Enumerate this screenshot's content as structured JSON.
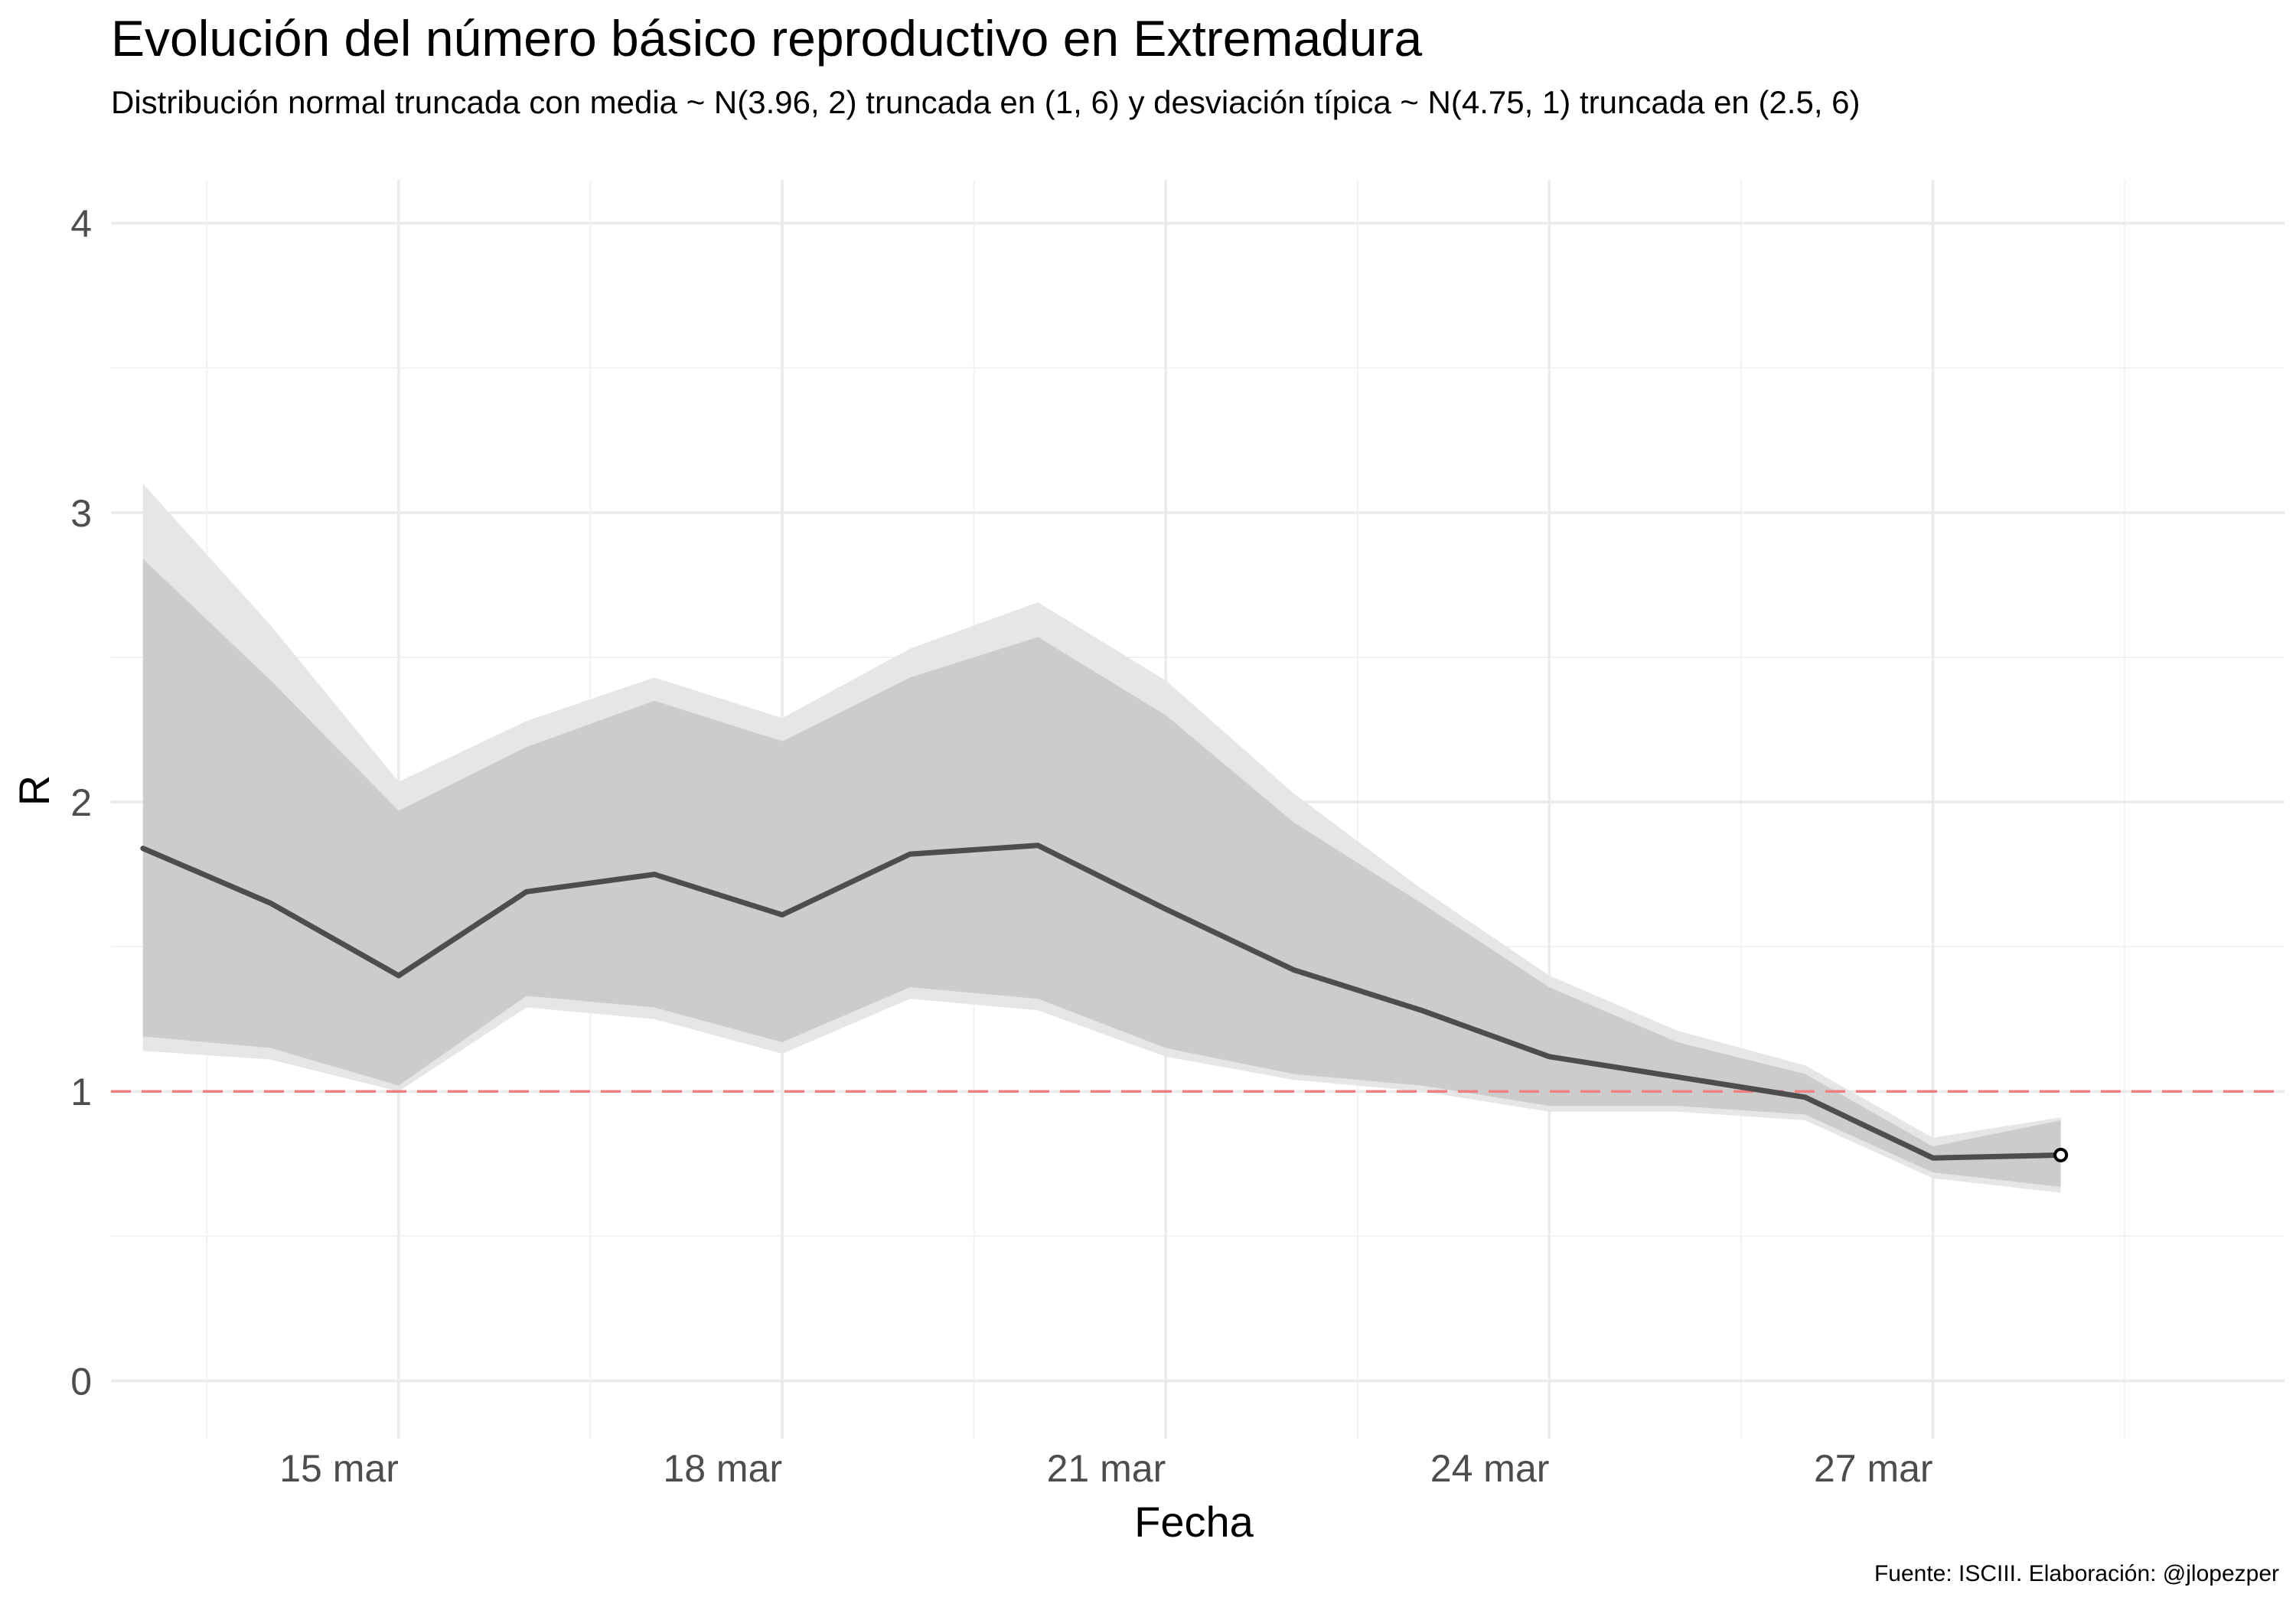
{
  "chart_data": {
    "type": "line",
    "title": "Evolución del número básico reproductivo en Extremadura",
    "subtitle": "Distribución normal truncada con media ~ N(3.96, 2) truncada en (1, 6) y desviación típica ~ N(4.75, 1) truncada en (2.5, 6)",
    "caption": "Fuente: ISCIII. Elaboración: @jlopezper",
    "xlabel": "Fecha",
    "ylabel": "R",
    "ylim": [
      -0.2,
      4.15
    ],
    "xlim": [
      "2020-03-12T18:00",
      "2020-03-29T18:00"
    ],
    "y_ticks": [
      0,
      1,
      2,
      3,
      4
    ],
    "y_minor_ticks": [
      0.5,
      1.5,
      2.5,
      3.5
    ],
    "x_ticks": [
      {
        "date": "2020-03-15",
        "label": "15 mar"
      },
      {
        "date": "2020-03-18",
        "label": "18 mar"
      },
      {
        "date": "2020-03-21",
        "label": "21 mar"
      },
      {
        "date": "2020-03-24",
        "label": "24 mar"
      },
      {
        "date": "2020-03-27",
        "label": "27 mar"
      }
    ],
    "x_minor_ticks": [
      "2020-03-13T12:00",
      "2020-03-16T12:00",
      "2020-03-19T12:00",
      "2020-03-22T12:00",
      "2020-03-25T12:00",
      "2020-03-28T12:00"
    ],
    "x": [
      "2020-03-13",
      "2020-03-14",
      "2020-03-15",
      "2020-03-16",
      "2020-03-17",
      "2020-03-18",
      "2020-03-19",
      "2020-03-20",
      "2020-03-21",
      "2020-03-22",
      "2020-03-23",
      "2020-03-24",
      "2020-03-25",
      "2020-03-26",
      "2020-03-27",
      "2020-03-28"
    ],
    "series": [
      {
        "role": "mean",
        "color": "#4d4d4d",
        "values": [
          1.84,
          1.65,
          1.4,
          1.69,
          1.75,
          1.61,
          1.82,
          1.85,
          1.63,
          1.42,
          1.28,
          1.12,
          1.05,
          0.98,
          0.77,
          0.78
        ]
      },
      {
        "role": "inner_band",
        "color": "#cccccc",
        "lower": [
          1.19,
          1.15,
          1.02,
          1.33,
          1.29,
          1.17,
          1.36,
          1.32,
          1.15,
          1.06,
          1.02,
          0.95,
          0.95,
          0.92,
          0.72,
          0.67
        ],
        "upper": [
          2.84,
          2.42,
          1.97,
          2.19,
          2.35,
          2.21,
          2.43,
          2.57,
          2.3,
          1.93,
          1.65,
          1.36,
          1.17,
          1.06,
          0.81,
          0.9
        ]
      },
      {
        "role": "outer_band",
        "color": "#e6e6e6",
        "lower": [
          1.14,
          1.11,
          1.0,
          1.29,
          1.25,
          1.13,
          1.32,
          1.28,
          1.12,
          1.04,
          1.0,
          0.93,
          0.93,
          0.9,
          0.7,
          0.65
        ],
        "upper": [
          3.1,
          2.61,
          2.07,
          2.28,
          2.43,
          2.29,
          2.53,
          2.69,
          2.42,
          2.03,
          1.7,
          1.4,
          1.21,
          1.09,
          0.84,
          0.91
        ]
      }
    ],
    "reference_line": {
      "y": 1,
      "color": "#f08080",
      "style": "dashed"
    },
    "end_marker": {
      "date": "2020-03-28",
      "y": 0.78,
      "shape": "open-circle"
    },
    "grid": true,
    "legend": "none"
  }
}
